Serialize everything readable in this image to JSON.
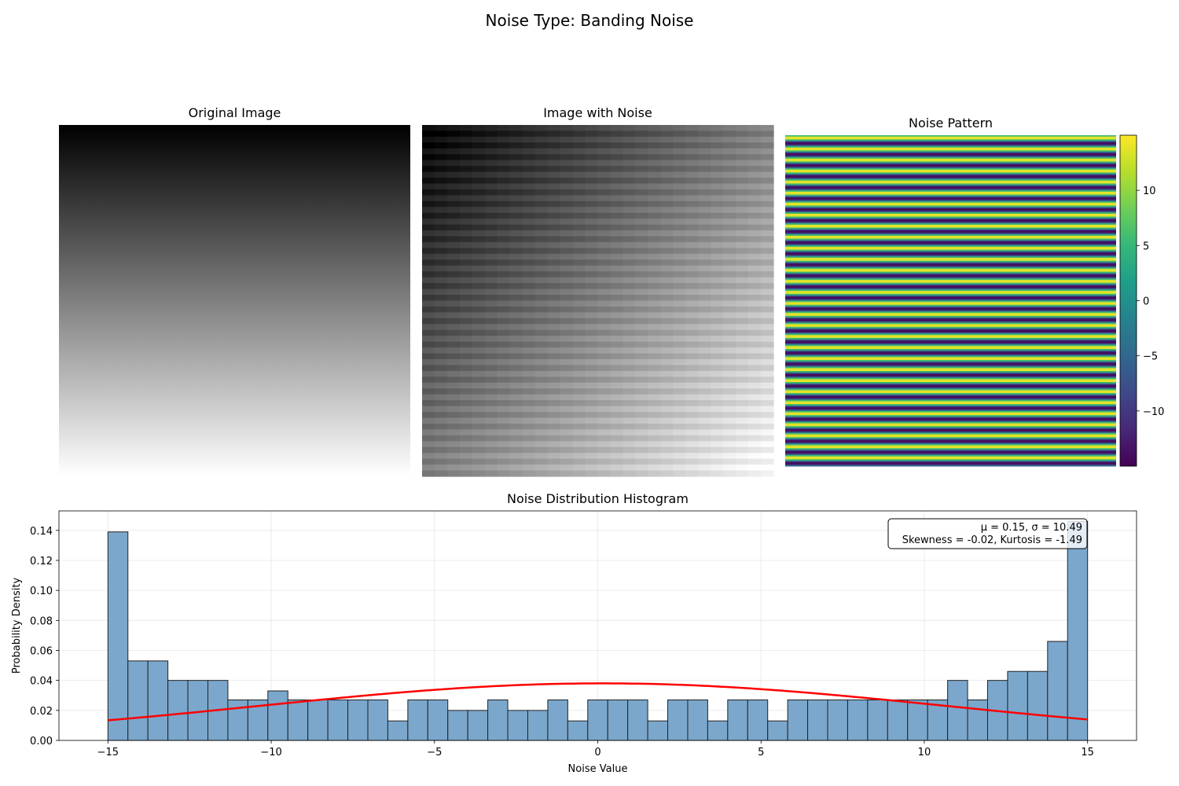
{
  "figure": {
    "title": "Noise Type: Banding Noise"
  },
  "panels": {
    "original": {
      "title": "Original Image"
    },
    "noisy": {
      "title": "Image with Noise"
    },
    "pattern": {
      "title": "Noise Pattern"
    }
  },
  "colorbar": {
    "colormap": "viridis",
    "range": [
      -15,
      15
    ],
    "ticks": [
      10,
      5,
      0,
      -5,
      -10
    ],
    "tick_labels": [
      "10",
      "5",
      "0",
      "−5",
      "−10"
    ]
  },
  "chart_data": {
    "type": "bar",
    "title": "Noise Distribution Histogram",
    "xlabel": "Noise Value",
    "ylabel": "Probability Density",
    "xlim": [
      -16.5,
      16.5
    ],
    "ylim": [
      0,
      0.153
    ],
    "grid": true,
    "bin_range": [
      -15,
      15
    ],
    "bar_color": "#7ba7cc",
    "edge_color": "#222222",
    "x_ticks": [
      -15,
      -10,
      -5,
      0,
      5,
      10,
      15
    ],
    "x_tick_labels": [
      "−15",
      "−10",
      "−5",
      "0",
      "5",
      "10",
      "15"
    ],
    "y_ticks": [
      0,
      0.02,
      0.04,
      0.06,
      0.08,
      0.1,
      0.12,
      0.14
    ],
    "y_tick_labels": [
      "0.00",
      "0.02",
      "0.04",
      "0.06",
      "0.08",
      "0.10",
      "0.12",
      "0.14"
    ],
    "values": [
      0.139,
      0.053,
      0.053,
      0.04,
      0.04,
      0.04,
      0.027,
      0.027,
      0.033,
      0.027,
      0.027,
      0.027,
      0.027,
      0.027,
      0.013,
      0.027,
      0.027,
      0.02,
      0.02,
      0.027,
      0.02,
      0.02,
      0.027,
      0.013,
      0.027,
      0.027,
      0.027,
      0.013,
      0.027,
      0.027,
      0.013,
      0.027,
      0.027,
      0.013,
      0.027,
      0.027,
      0.027,
      0.027,
      0.027,
      0.027,
      0.027,
      0.027,
      0.04,
      0.027,
      0.04,
      0.046,
      0.046,
      0.066,
      0.146
    ],
    "fit_curve": {
      "type": "normal-pdf",
      "color": "#ff0000",
      "mu": 0.15,
      "sigma": 10.49
    },
    "stats_box": {
      "position": "top-right",
      "line1": "μ = 0.15, σ = 10.49",
      "line2": "Skewness = -0.02, Kurtosis = -1.49"
    }
  }
}
